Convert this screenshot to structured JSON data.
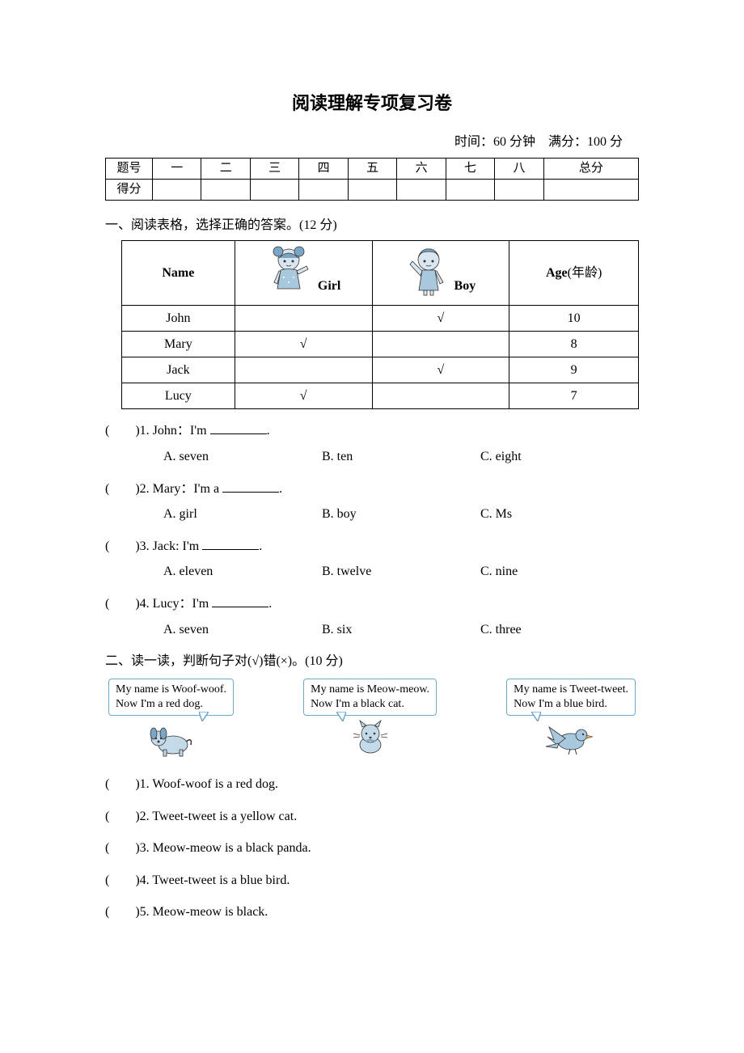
{
  "title": "阅读理解专项复习卷",
  "time_score": "时间：60 分钟　满分：100 分",
  "score_table": {
    "headers": [
      "题号",
      "一",
      "二",
      "三",
      "四",
      "五",
      "六",
      "七",
      "八",
      "总分"
    ],
    "row_label": "得分"
  },
  "section1": {
    "heading": "一、阅读表格，选择正确的答案。(12 分)",
    "table": {
      "name_header": "Name",
      "girl_label": "Girl",
      "boy_label": "Boy",
      "age_header_bold": "Age",
      "age_header_rest": "(年龄)",
      "rows": [
        {
          "name": "John",
          "girl": "",
          "boy": "√",
          "age": "10"
        },
        {
          "name": "Mary",
          "girl": "√",
          "boy": "",
          "age": "8"
        },
        {
          "name": "Jack",
          "girl": "",
          "boy": "√",
          "age": "9"
        },
        {
          "name": "Lucy",
          "girl": "√",
          "boy": "",
          "age": "7"
        }
      ]
    },
    "questions": [
      {
        "num": "1",
        "stem_pre": "John：I'm ",
        "stem_post": ".",
        "opts": [
          "A. seven",
          "B. ten",
          "C. eight"
        ]
      },
      {
        "num": "2",
        "stem_pre": "Mary：I'm a ",
        "stem_post": ".",
        "opts": [
          "A. girl",
          "B. boy",
          "C. Ms"
        ]
      },
      {
        "num": "3",
        "stem_pre": "Jack: I'm ",
        "stem_post": ".",
        "opts": [
          "A. eleven",
          "B. twelve",
          "C. nine"
        ]
      },
      {
        "num": "4",
        "stem_pre": "Lucy：I'm ",
        "stem_post": ".",
        "opts": [
          "A. seven",
          "B. six",
          "C. three"
        ]
      }
    ]
  },
  "section2": {
    "heading": "二、读一读，判断句子对(√)错(×)。(10 分)",
    "bubbles": [
      {
        "line1": "My name is Woof-woof.",
        "line2": "Now I'm a red dog."
      },
      {
        "line1": "My name is Meow-meow.",
        "line2": "Now I'm a black cat."
      },
      {
        "line1": "My name is Tweet-tweet.",
        "line2": "Now I'm a blue bird."
      }
    ],
    "tf": [
      "1. Woof-woof is a red dog.",
      "2. Tweet-tweet is a yellow cat.",
      "3. Meow-meow is a black panda.",
      "4. Tweet-tweet is a blue bird.",
      "5. Meow-meow is black."
    ]
  },
  "colors": {
    "text": "#000000",
    "bubble_border": "#6fa8c9",
    "illustration": "#a8c8de",
    "illustration_dark": "#7aa5c4"
  }
}
